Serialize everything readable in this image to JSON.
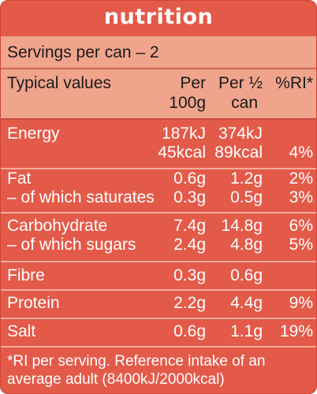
{
  "title": "nutrition",
  "servings": "Servings per can – 2",
  "columns": {
    "name": "Typical values",
    "per100_line1": "Per",
    "per100_line2": "100g",
    "perhalf_line1": "Per ½",
    "perhalf_line2": "can",
    "ri": "%RI*"
  },
  "energy": {
    "label": "Energy",
    "kj_100": "187kJ",
    "kcal_100": "45kcal",
    "kj_half": "374kJ",
    "kcal_half": "89kcal",
    "ri": "4%"
  },
  "fat": {
    "label": "Fat",
    "per100": "0.6g",
    "perhalf": "1.2g",
    "ri": "2%",
    "sub_label": "– of which saturates",
    "sub_per100": "0.3g",
    "sub_perhalf": "0.5g",
    "sub_ri": "3%"
  },
  "carbs": {
    "label": "Carbohydrate",
    "per100": "7.4g",
    "perhalf": "14.8g",
    "ri": "6%",
    "sub_label": "– of which sugars",
    "sub_per100": "2.4g",
    "sub_perhalf": "4.8g",
    "sub_ri": "5%"
  },
  "fibre": {
    "label": "Fibre",
    "per100": "0.3g",
    "perhalf": "0.6g",
    "ri": ""
  },
  "protein": {
    "label": "Protein",
    "per100": "2.2g",
    "perhalf": "4.4g",
    "ri": "9%"
  },
  "salt": {
    "label": "Salt",
    "per100": "0.6g",
    "perhalf": "1.1g",
    "ri": "19%"
  },
  "footnote": "*RI per serving. Reference intake of an average adult (8400kJ/2000kcal)",
  "colors": {
    "panel": "#e35a49",
    "header_band": "#f0a48c",
    "text_light": "#ffffff",
    "text_dark": "#1b1b1b"
  }
}
